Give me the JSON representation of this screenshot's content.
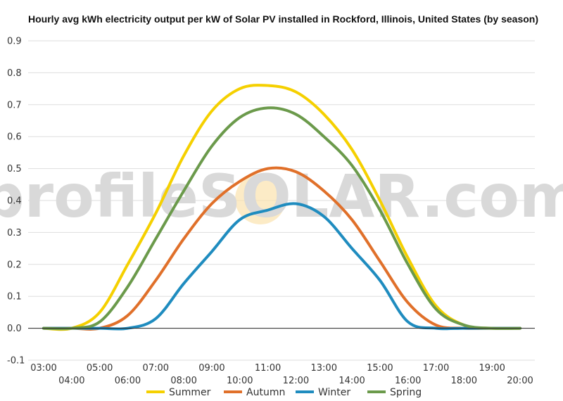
{
  "chart_data": {
    "type": "line",
    "title": "Hourly avg kWh electricity output per kW of Solar PV installed in Rockford, Illinois, United States (by season)",
    "xlabel": "",
    "ylabel": "",
    "x": [
      "03:00",
      "04:00",
      "05:00",
      "06:00",
      "07:00",
      "08:00",
      "09:00",
      "10:00",
      "11:00",
      "12:00",
      "13:00",
      "14:00",
      "15:00",
      "16:00",
      "17:00",
      "18:00",
      "19:00",
      "20:00"
    ],
    "ylim": [
      -0.1,
      0.9
    ],
    "yticks": [
      "-0.1",
      "0.0",
      "0.1",
      "0.2",
      "0.3",
      "0.4",
      "0.5",
      "0.6",
      "0.7",
      "0.8",
      "0.9"
    ],
    "grid": true,
    "legend_position": "bottom",
    "series": [
      {
        "name": "Summer",
        "color": "#f5d000",
        "values": [
          0.0,
          0.0,
          0.05,
          0.2,
          0.36,
          0.54,
          0.68,
          0.75,
          0.76,
          0.74,
          0.67,
          0.56,
          0.4,
          0.22,
          0.07,
          0.01,
          0.0,
          0.0
        ]
      },
      {
        "name": "Autumn",
        "color": "#e0702a",
        "values": [
          0.0,
          0.0,
          0.0,
          0.04,
          0.15,
          0.28,
          0.39,
          0.46,
          0.5,
          0.49,
          0.43,
          0.34,
          0.21,
          0.08,
          0.01,
          0.0,
          0.0,
          0.0
        ]
      },
      {
        "name": "Winter",
        "color": "#1f8cbf",
        "values": [
          0.0,
          0.0,
          0.0,
          0.0,
          0.03,
          0.14,
          0.24,
          0.34,
          0.37,
          0.39,
          0.35,
          0.25,
          0.15,
          0.02,
          0.0,
          0.0,
          0.0,
          0.0
        ]
      },
      {
        "name": "Spring",
        "color": "#6b9a4b",
        "values": [
          0.0,
          0.0,
          0.02,
          0.13,
          0.28,
          0.43,
          0.57,
          0.66,
          0.69,
          0.67,
          0.6,
          0.51,
          0.37,
          0.2,
          0.06,
          0.01,
          0.0,
          0.0
        ]
      }
    ]
  },
  "watermark": {
    "text": "profileSOLAR.com"
  }
}
